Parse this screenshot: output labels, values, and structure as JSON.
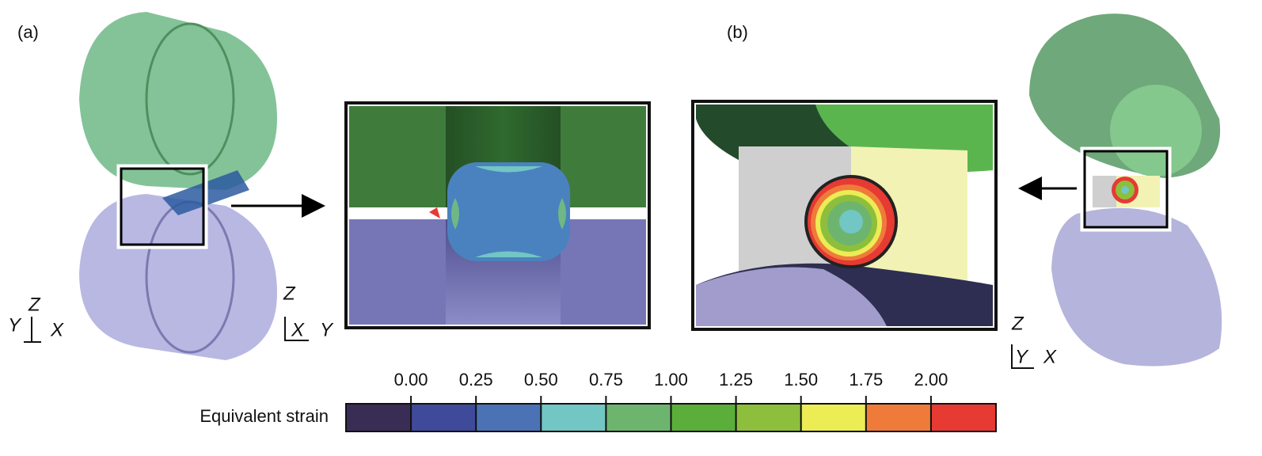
{
  "panel_a": {
    "label": "(a)",
    "axes": {
      "z": "Z",
      "y": "Y",
      "x": "X"
    }
  },
  "zoom_a": {
    "axes": {
      "z": "Z",
      "x": "X",
      "y": "Y"
    }
  },
  "panel_b": {
    "label": "(b)",
    "axes": {
      "z": "Z",
      "y": "Y",
      "x": "X"
    }
  },
  "colorbar": {
    "label": "Equivalent strain",
    "ticks": [
      "0.00",
      "0.25",
      "0.50",
      "0.75",
      "1.00",
      "1.25",
      "1.50",
      "1.75",
      "2.00"
    ],
    "colors": [
      "#3a2d55",
      "#3f4a9a",
      "#4a72b4",
      "#72c6c4",
      "#6db56f",
      "#5cae3a",
      "#8dbf3c",
      "#ecec55",
      "#ef7b3a",
      "#e63a33"
    ]
  }
}
